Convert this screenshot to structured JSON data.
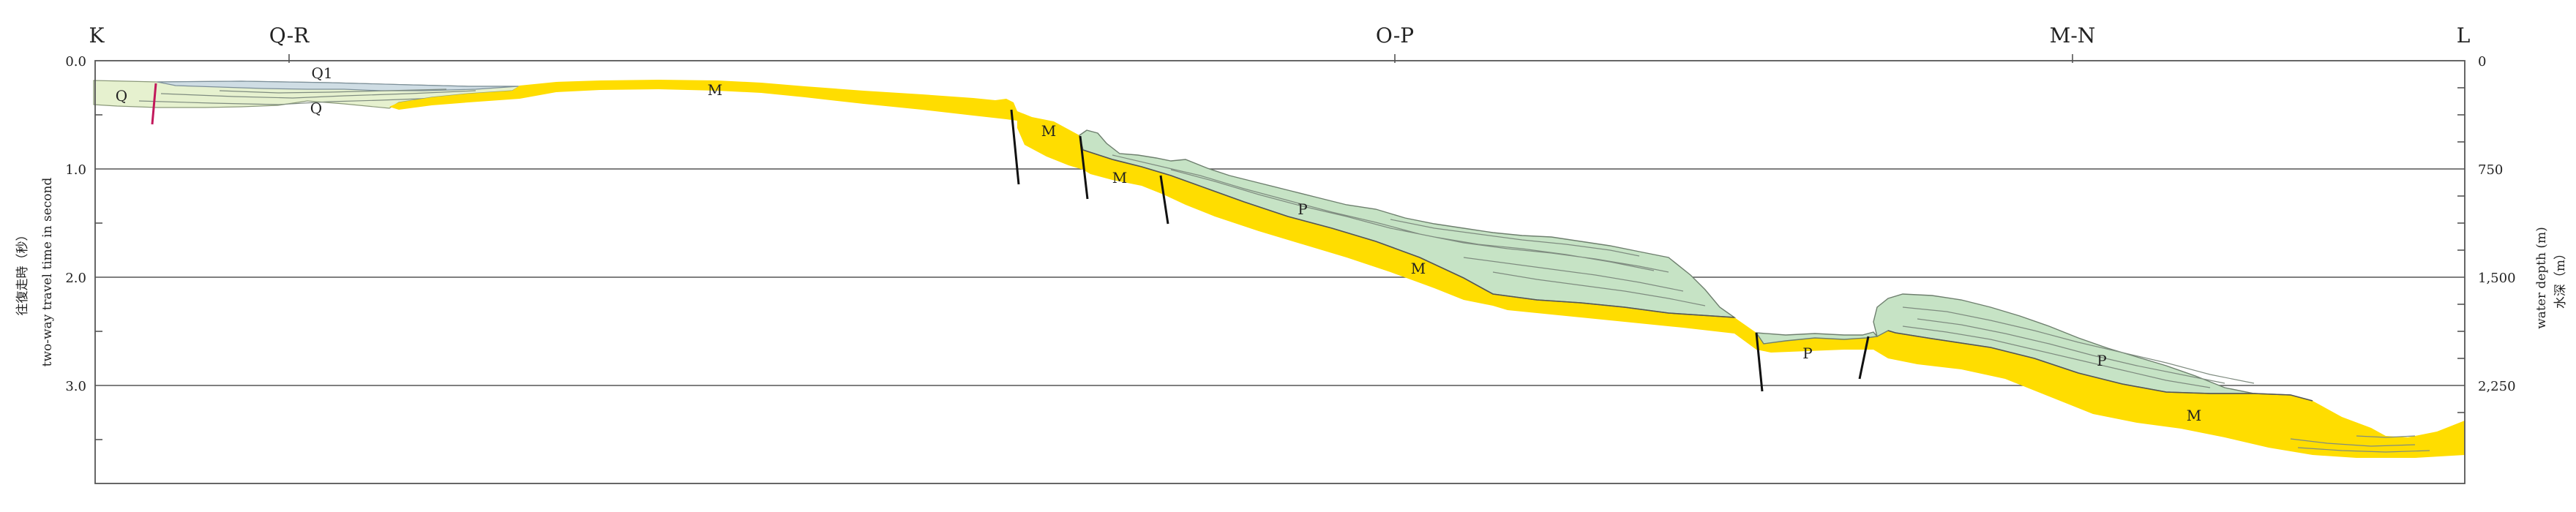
{
  "section_labels": {
    "K": "K",
    "QR": "Q-R",
    "OP": "O-P",
    "MN": "M-N",
    "L": "L"
  },
  "left_axis": {
    "title_cn": "往復走時（秒）",
    "title_en": "two-way travel time in second",
    "ticks": [
      "0.0",
      "1.0",
      "2.0",
      "3.0"
    ]
  },
  "right_axis": {
    "title_en": "water depth (m)",
    "title_cn": "水深（m）",
    "ticks": [
      "0",
      "750",
      "1,500",
      "2,250"
    ]
  },
  "units": {
    "Q1": "Q1",
    "Q": "Q",
    "M": "M",
    "P": "P"
  },
  "colors": {
    "M_unit": "#ffdd00",
    "P_unit": "#c6e3c5",
    "Q_unit": "#e6f1cf",
    "Q1_unit": "#cfdde4",
    "fault": "#111111",
    "fault_highlight": "#c2185b",
    "grid": "#555555"
  }
}
